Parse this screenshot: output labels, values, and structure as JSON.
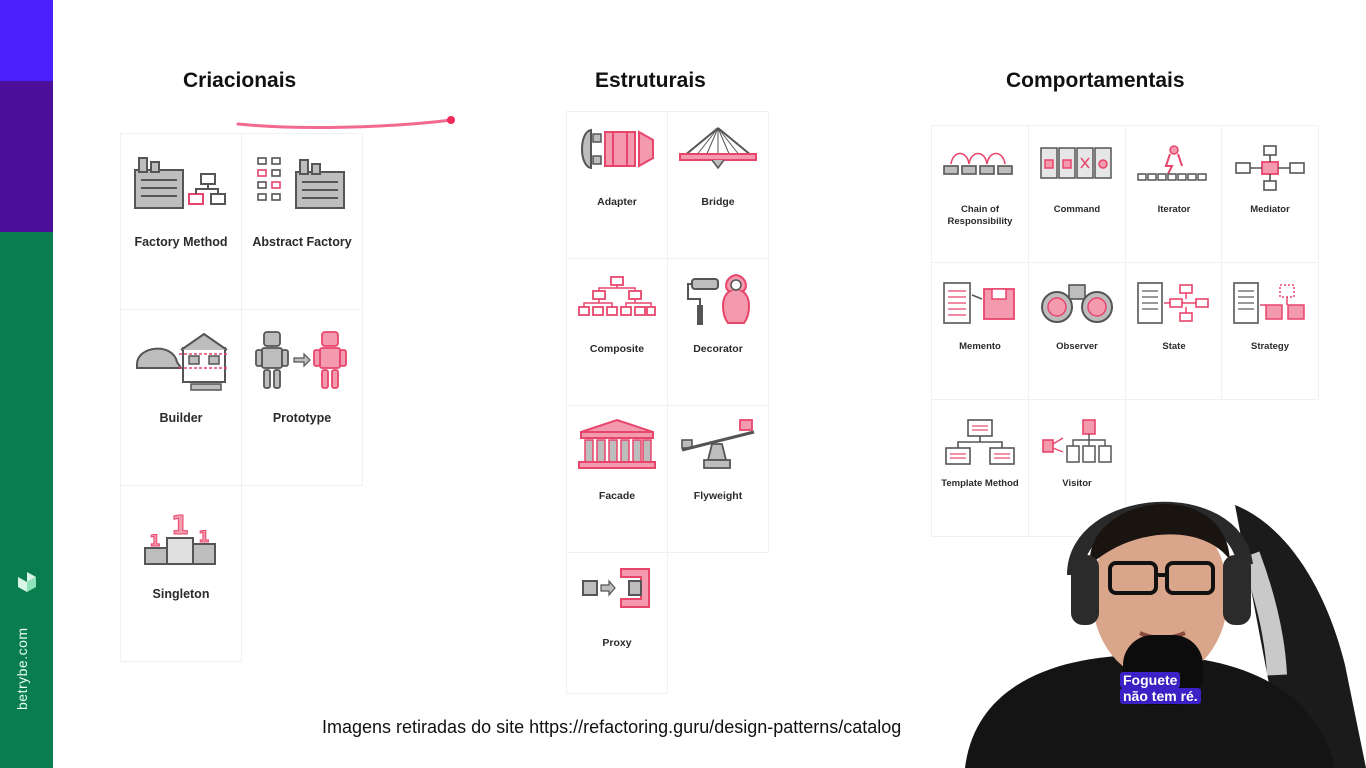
{
  "brand": {
    "site": "betrybe.com",
    "colors": {
      "top": "#4b1ffb",
      "mid": "#4d0f9a",
      "bottom": "#0a7d4f"
    }
  },
  "columns": {
    "criacionais": {
      "title": "Criacionais",
      "items": [
        {
          "label": "Factory Method",
          "icon": "factory-icon"
        },
        {
          "label": "Abstract Factory",
          "icon": "abstract-factory-icon"
        },
        {
          "label": "Builder",
          "icon": "builder-icon"
        },
        {
          "label": "Prototype",
          "icon": "prototype-icon"
        },
        {
          "label": "Singleton",
          "icon": "singleton-icon"
        }
      ]
    },
    "estruturais": {
      "title": "Estruturais",
      "items": [
        {
          "label": "Adapter",
          "icon": "adapter-icon"
        },
        {
          "label": "Bridge",
          "icon": "bridge-icon"
        },
        {
          "label": "Composite",
          "icon": "composite-icon"
        },
        {
          "label": "Decorator",
          "icon": "decorator-icon"
        },
        {
          "label": "Facade",
          "icon": "facade-icon"
        },
        {
          "label": "Flyweight",
          "icon": "flyweight-icon"
        },
        {
          "label": "Proxy",
          "icon": "proxy-icon"
        }
      ]
    },
    "comportamentais": {
      "title": "Comportamentais",
      "items": [
        {
          "label": "Chain of Responsibility",
          "icon": "chain-icon"
        },
        {
          "label": "Command",
          "icon": "command-icon"
        },
        {
          "label": "Iterator",
          "icon": "iterator-icon"
        },
        {
          "label": "Mediator",
          "icon": "mediator-icon"
        },
        {
          "label": "Memento",
          "icon": "memento-icon"
        },
        {
          "label": "Observer",
          "icon": "observer-icon"
        },
        {
          "label": "State",
          "icon": "state-icon"
        },
        {
          "label": "Strategy",
          "icon": "strategy-icon"
        },
        {
          "label": "Template Method",
          "icon": "template-method-icon"
        },
        {
          "label": "Visitor",
          "icon": "visitor-icon"
        }
      ]
    }
  },
  "caption": "Imagens retiradas do site https://refactoring.guru/design-patterns/catalog",
  "webcam": {
    "subtitle_line1": "Foguete",
    "subtitle_line2": "não tem ré."
  },
  "icon_colors": {
    "accent": "#e8456b",
    "gray": "#5a5a5a"
  }
}
